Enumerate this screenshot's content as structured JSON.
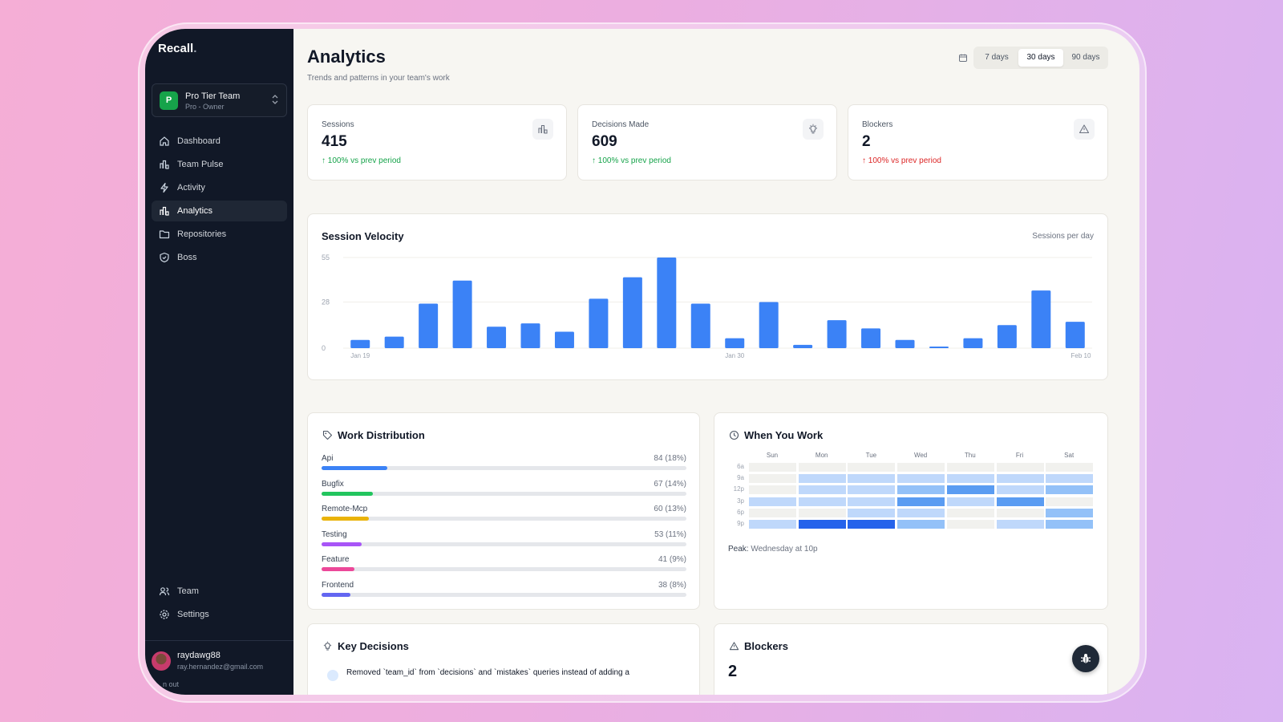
{
  "app": {
    "name": "Recall",
    "name_dot": "."
  },
  "team": {
    "initial": "P",
    "name": "Pro Tier Team",
    "role": "Pro - Owner"
  },
  "nav": {
    "items": [
      {
        "label": "Dashboard",
        "icon": "home-icon",
        "active": false
      },
      {
        "label": "Team Pulse",
        "icon": "bar-chart-icon",
        "active": false
      },
      {
        "label": "Activity",
        "icon": "lightning-icon",
        "active": false
      },
      {
        "label": "Analytics",
        "icon": "bar-chart-icon",
        "active": true
      },
      {
        "label": "Repositories",
        "icon": "folder-icon",
        "active": false
      },
      {
        "label": "Boss",
        "icon": "shield-icon",
        "active": false
      }
    ],
    "bottom": [
      {
        "label": "Team",
        "icon": "users-icon"
      },
      {
        "label": "Settings",
        "icon": "gear-icon"
      }
    ]
  },
  "user": {
    "name": "raydawg88",
    "email": "ray.hernandez@gmail.com",
    "signout": "n out"
  },
  "header": {
    "title": "Analytics",
    "subtitle": "Trends and patterns in your team's work"
  },
  "range": {
    "options": [
      "7 days",
      "30 days",
      "90 days"
    ],
    "selected": "30 days"
  },
  "stats": [
    {
      "label": "Sessions",
      "value": "415",
      "change": "↑ 100% vs prev period",
      "change_color": "#16a34a",
      "icon": "bar-chart-icon"
    },
    {
      "label": "Decisions Made",
      "value": "609",
      "change": "↑ 100% vs prev period",
      "change_color": "#16a34a",
      "icon": "lightbulb-icon"
    },
    {
      "label": "Blockers",
      "value": "2",
      "change": "↑ 100% vs prev period",
      "change_color": "#dc2626",
      "icon": "warning-icon"
    }
  ],
  "velocity": {
    "title": "Session Velocity",
    "note": "Sessions per day"
  },
  "chart_data": {
    "type": "bar",
    "title": "Session Velocity",
    "ylabel": "Sessions per day",
    "ylim": [
      0,
      55
    ],
    "yticks": [
      "55",
      "28",
      "0"
    ],
    "ytick_values": [
      55,
      28,
      0
    ],
    "xtick_labels": [
      {
        "label": "Jan 19",
        "index": 0
      },
      {
        "label": "Jan 30",
        "index": 11
      },
      {
        "label": "Feb 10",
        "index": 22
      }
    ],
    "values": [
      5,
      7,
      27,
      41,
      13,
      15,
      10,
      30,
      43,
      55,
      27,
      6,
      28,
      2,
      17,
      12,
      5,
      1,
      6,
      14,
      35,
      16
    ],
    "color": "#3b82f6"
  },
  "work": {
    "title": "Work Distribution",
    "items": [
      {
        "label": "Api",
        "count": "84 (18%)",
        "pct": 18,
        "color": "#3b82f6"
      },
      {
        "label": "Bugfix",
        "count": "67 (14%)",
        "pct": 14,
        "color": "#22c55e"
      },
      {
        "label": "Remote-Mcp",
        "count": "60 (13%)",
        "pct": 13,
        "color": "#eab308"
      },
      {
        "label": "Testing",
        "count": "53 (11%)",
        "pct": 11,
        "color": "#a855f7"
      },
      {
        "label": "Feature",
        "count": "41 (9%)",
        "pct": 9,
        "color": "#ec4899"
      },
      {
        "label": "Frontend",
        "count": "38 (8%)",
        "pct": 8,
        "color": "#6366f1"
      }
    ]
  },
  "heatmap": {
    "title": "When You Work",
    "days": [
      "Sun",
      "Mon",
      "Tue",
      "Wed",
      "Thu",
      "Fri",
      "Sat"
    ],
    "times": [
      "6a",
      "9a",
      "12p",
      "3p",
      "6p",
      "9p"
    ],
    "levels": [
      [
        0,
        0,
        0,
        0,
        0,
        0,
        0
      ],
      [
        0,
        1,
        1,
        1,
        1,
        1,
        1
      ],
      [
        0,
        1,
        1,
        2,
        3,
        1,
        2
      ],
      [
        1,
        1,
        1,
        3,
        1,
        3,
        0
      ],
      [
        0,
        0,
        1,
        1,
        0,
        0,
        2
      ],
      [
        1,
        4,
        4,
        2,
        0,
        1,
        2
      ]
    ],
    "peak_label": "Peak:",
    "peak_value": "Wednesday at 10p"
  },
  "decisions": {
    "title": "Key Decisions",
    "first": "Removed `team_id` from `decisions` and `mistakes` queries instead of adding a"
  },
  "blockers": {
    "title": "Blockers",
    "count": "2"
  }
}
